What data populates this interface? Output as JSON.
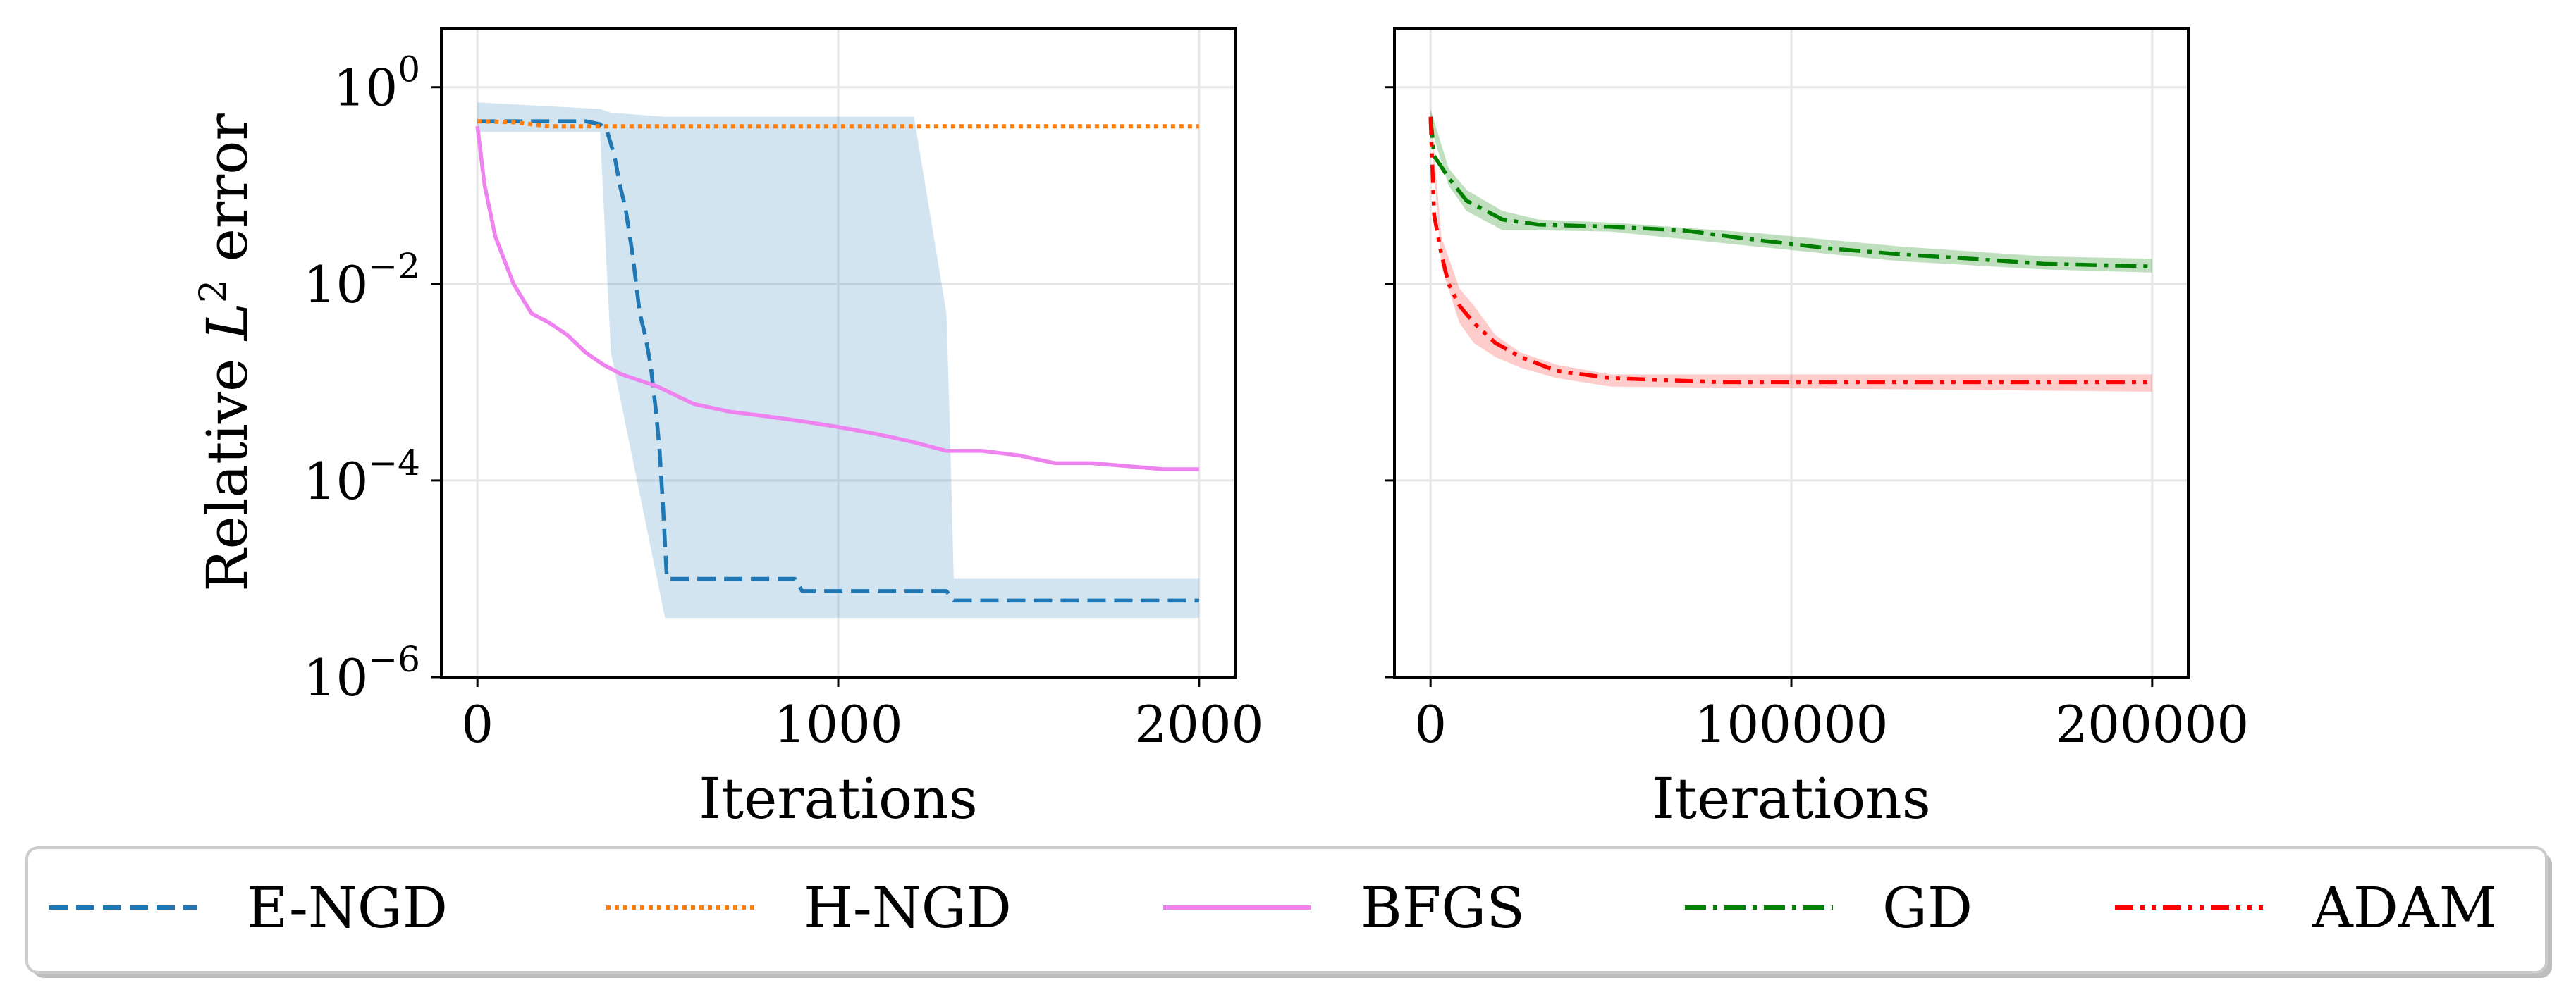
{
  "chart_data": [
    {
      "type": "line",
      "panel": "left",
      "xlabel": "Iterations",
      "ylabel": "Relative L² error",
      "ylabel_parts": {
        "base": "Relative ",
        "var": "L",
        "sup": "2",
        "rest": " error"
      },
      "yscale": "log",
      "xlim": [
        -100,
        2100
      ],
      "ylim_exp": [
        -6,
        0.6
      ],
      "xticks": [
        0,
        1000,
        2000
      ],
      "xtick_labels": [
        "0",
        "1000",
        "2000"
      ],
      "yticks_exp": [
        0,
        -2,
        -4,
        -6
      ],
      "ytick_labels": [
        {
          "base": "10",
          "exp": "0"
        },
        {
          "base": "10",
          "exp": "−2"
        },
        {
          "base": "10",
          "exp": "−4"
        },
        {
          "base": "10",
          "exp": "−6"
        }
      ],
      "grid": true,
      "series": [
        {
          "name": "E-NGD",
          "style": "dashed",
          "color": "#1f77b4",
          "x": [
            0,
            300,
            340,
            360,
            380,
            395,
            410,
            430,
            450,
            465,
            480,
            495,
            505,
            515,
            525,
            880,
            900,
            1300,
            1320,
            2000
          ],
          "y": [
            0.45,
            0.45,
            0.42,
            0.35,
            0.2,
            0.1,
            0.06,
            0.02,
            0.005,
            0.003,
            0.0015,
            0.0005,
            0.0002,
            5e-05,
            1e-05,
            1e-05,
            7.5e-06,
            7.5e-06,
            6e-06,
            6e-06
          ],
          "band": {
            "x": [
              0,
              340,
              370,
              520,
              880,
              1200,
              1210,
              1300,
              1310,
              1320,
              2000
            ],
            "upper": [
              0.7,
              0.6,
              0.55,
              0.5,
              0.5,
              0.5,
              0.5,
              0.005,
              0.0003,
              1e-05,
              1e-05
            ],
            "lower": [
              0.35,
              0.35,
              0.002,
              4e-06,
              4e-06,
              4e-06,
              4e-06,
              4e-06,
              4e-06,
              4e-06,
              4e-06
            ]
          }
        },
        {
          "name": "H-NGD",
          "style": "dotted",
          "color": "#ff7f0e",
          "x": [
            0,
            100,
            200,
            2000
          ],
          "y": [
            0.45,
            0.44,
            0.4,
            0.4
          ]
        },
        {
          "name": "BFGS",
          "style": "solid",
          "color": "#ee82ee",
          "x": [
            0,
            20,
            50,
            100,
            150,
            200,
            250,
            300,
            350,
            400,
            500,
            600,
            700,
            800,
            900,
            1000,
            1100,
            1200,
            1300,
            1400,
            1500,
            1600,
            1700,
            1800,
            1900,
            2000
          ],
          "y": [
            0.4,
            0.1,
            0.03,
            0.01,
            0.005,
            0.004,
            0.003,
            0.002,
            0.0015,
            0.0012,
            0.0009,
            0.0006,
            0.0005,
            0.00045,
            0.0004,
            0.00035,
            0.0003,
            0.00025,
            0.0002,
            0.0002,
            0.00018,
            0.00015,
            0.00015,
            0.00014,
            0.00013,
            0.00013
          ]
        }
      ]
    },
    {
      "type": "line",
      "panel": "right",
      "xlabel": "Iterations",
      "yscale": "log",
      "sharey": true,
      "xlim": [
        -10000,
        210000
      ],
      "ylim_exp": [
        -6,
        0.6
      ],
      "xticks": [
        0,
        100000,
        200000
      ],
      "xtick_labels": [
        "0",
        "100000",
        "200000"
      ],
      "grid": true,
      "series": [
        {
          "name": "GD",
          "style": "dashdot",
          "color": "#008000",
          "x": [
            0,
            1000,
            5000,
            10000,
            20000,
            30000,
            50000,
            70000,
            90000,
            110000,
            130000,
            150000,
            170000,
            200000
          ],
          "y": [
            0.5,
            0.2,
            0.12,
            0.07,
            0.045,
            0.04,
            0.038,
            0.035,
            0.028,
            0.023,
            0.02,
            0.018,
            0.016,
            0.015
          ],
          "band": {
            "x": [
              0,
              5000,
              10000,
              20000,
              30000,
              50000,
              90000,
              130000,
              170000,
              200000
            ],
            "upper": [
              0.6,
              0.15,
              0.09,
              0.055,
              0.045,
              0.042,
              0.033,
              0.024,
              0.019,
              0.018
            ],
            "lower": [
              0.4,
              0.1,
              0.055,
              0.035,
              0.035,
              0.034,
              0.024,
              0.017,
              0.014,
              0.013
            ]
          }
        },
        {
          "name": "ADAM",
          "style": "dashdotdot",
          "color": "#ff0000",
          "x": [
            0,
            1000,
            3000,
            5000,
            8000,
            12000,
            18000,
            25000,
            35000,
            50000,
            80000,
            120000,
            160000,
            200000
          ],
          "y": [
            0.5,
            0.05,
            0.02,
            0.01,
            0.006,
            0.004,
            0.0025,
            0.0018,
            0.0013,
            0.0011,
            0.001,
            0.001,
            0.001,
            0.001
          ],
          "band": {
            "x": [
              0,
              3000,
              8000,
              12000,
              18000,
              25000,
              35000,
              50000,
              200000
            ],
            "upper": [
              0.6,
              0.03,
              0.009,
              0.006,
              0.003,
              0.002,
              0.0015,
              0.0012,
              0.0012
            ],
            "lower": [
              0.4,
              0.015,
              0.004,
              0.0025,
              0.0018,
              0.0014,
              0.0011,
              0.0009,
              0.0008
            ]
          }
        }
      ]
    }
  ],
  "legend": {
    "placement": "bottom",
    "entries": [
      {
        "label": "E-NGD",
        "color": "#1f77b4",
        "style": "dashed"
      },
      {
        "label": "H-NGD",
        "color": "#ff7f0e",
        "style": "dotted"
      },
      {
        "label": "BFGS",
        "color": "#ee82ee",
        "style": "solid"
      },
      {
        "label": "GD",
        "color": "#008000",
        "style": "dashdot"
      },
      {
        "label": "ADAM",
        "color": "#ff0000",
        "style": "dashdotdot"
      }
    ]
  },
  "colors": {
    "grid": "#e6e6e6",
    "axes": "#000000",
    "legend_border": "#cccccc"
  }
}
